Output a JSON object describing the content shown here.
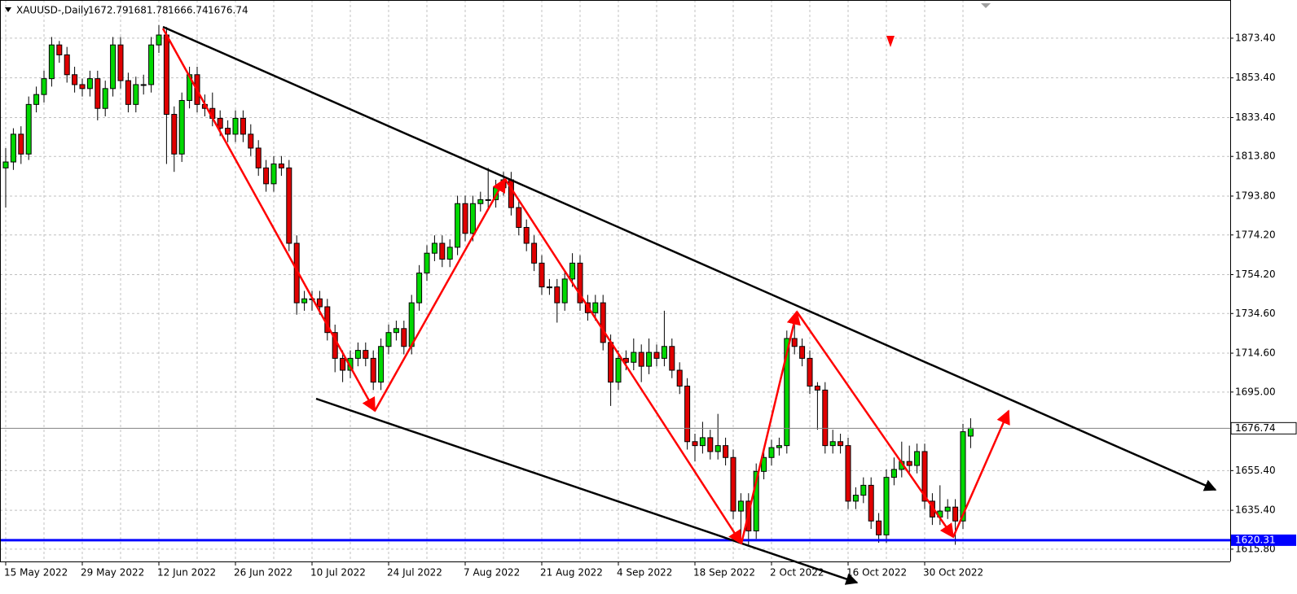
{
  "chart_data": {
    "type": "candlestick",
    "symbol_label": "XAUUSD-,Daily",
    "ohlc": [
      [
        1808,
        1818,
        1788,
        1811
      ],
      [
        1811,
        1828,
        1807,
        1825
      ],
      [
        1825,
        1829,
        1810,
        1815
      ],
      [
        1815,
        1844,
        1812,
        1840
      ],
      [
        1840,
        1849,
        1836,
        1845
      ],
      [
        1845,
        1857,
        1841,
        1853
      ],
      [
        1853,
        1874,
        1849,
        1870
      ],
      [
        1870,
        1872,
        1861,
        1865
      ],
      [
        1865,
        1869,
        1851,
        1855
      ],
      [
        1855,
        1859,
        1846,
        1850
      ],
      [
        1850,
        1853,
        1844,
        1848
      ],
      [
        1848,
        1857,
        1844,
        1853
      ],
      [
        1853,
        1857,
        1832,
        1838
      ],
      [
        1838,
        1852,
        1834,
        1848
      ],
      [
        1848,
        1874,
        1844,
        1870
      ],
      [
        1870,
        1874,
        1848,
        1852
      ],
      [
        1852,
        1856,
        1836,
        1840
      ],
      [
        1840,
        1854,
        1836,
        1850
      ],
      [
        1850,
        1855,
        1845,
        1850
      ],
      [
        1850,
        1874,
        1846,
        1870
      ],
      [
        1870,
        1880,
        1866,
        1875
      ],
      [
        1875,
        1879,
        1810,
        1835
      ],
      [
        1835,
        1839,
        1806,
        1815
      ],
      [
        1815,
        1846,
        1811,
        1842
      ],
      [
        1842,
        1859,
        1838,
        1855
      ],
      [
        1855,
        1859,
        1836,
        1840
      ],
      [
        1840,
        1845,
        1834,
        1838
      ],
      [
        1838,
        1846,
        1829,
        1833
      ],
      [
        1833,
        1837,
        1824,
        1828
      ],
      [
        1828,
        1832,
        1821,
        1825
      ],
      [
        1825,
        1837,
        1821,
        1833
      ],
      [
        1833,
        1837,
        1821,
        1825
      ],
      [
        1825,
        1830,
        1814,
        1818
      ],
      [
        1818,
        1822,
        1804,
        1808
      ],
      [
        1808,
        1812,
        1796,
        1800
      ],
      [
        1800,
        1814,
        1796,
        1810
      ],
      [
        1810,
        1814,
        1804,
        1808
      ],
      [
        1808,
        1812,
        1766,
        1770
      ],
      [
        1770,
        1774,
        1734,
        1740
      ],
      [
        1740,
        1746,
        1736,
        1742
      ],
      [
        1742,
        1746,
        1736,
        1742
      ],
      [
        1742,
        1746,
        1734,
        1738
      ],
      [
        1738,
        1742,
        1721,
        1725
      ],
      [
        1725,
        1729,
        1705,
        1712
      ],
      [
        1712,
        1716,
        1700,
        1706
      ],
      [
        1706,
        1716,
        1702,
        1712
      ],
      [
        1712,
        1720,
        1708,
        1716
      ],
      [
        1716,
        1720,
        1708,
        1712
      ],
      [
        1712,
        1716,
        1696,
        1700
      ],
      [
        1700,
        1722,
        1696,
        1718
      ],
      [
        1718,
        1729,
        1714,
        1725
      ],
      [
        1725,
        1731,
        1721,
        1727
      ],
      [
        1727,
        1731,
        1714,
        1718
      ],
      [
        1718,
        1744,
        1714,
        1740
      ],
      [
        1740,
        1759,
        1736,
        1755
      ],
      [
        1755,
        1769,
        1751,
        1765
      ],
      [
        1765,
        1774,
        1761,
        1770
      ],
      [
        1770,
        1774,
        1758,
        1762
      ],
      [
        1762,
        1772,
        1758,
        1768
      ],
      [
        1768,
        1794,
        1764,
        1790
      ],
      [
        1790,
        1794,
        1771,
        1775
      ],
      [
        1775,
        1794,
        1771,
        1790
      ],
      [
        1790,
        1796,
        1786,
        1792
      ],
      [
        1792,
        1808,
        1788,
        1792
      ],
      [
        1792,
        1802,
        1788,
        1798
      ],
      [
        1798,
        1806,
        1794,
        1802
      ],
      [
        1802,
        1806,
        1784,
        1788
      ],
      [
        1788,
        1792,
        1774,
        1778
      ],
      [
        1778,
        1782,
        1766,
        1770
      ],
      [
        1770,
        1774,
        1756,
        1760
      ],
      [
        1760,
        1764,
        1744,
        1748
      ],
      [
        1748,
        1752,
        1744,
        1748
      ],
      [
        1748,
        1752,
        1730,
        1740
      ],
      [
        1740,
        1756,
        1736,
        1752
      ],
      [
        1752,
        1765,
        1748,
        1760
      ],
      [
        1760,
        1764,
        1736,
        1740
      ],
      [
        1740,
        1744,
        1731,
        1735
      ],
      [
        1735,
        1744,
        1731,
        1740
      ],
      [
        1740,
        1744,
        1716,
        1720
      ],
      [
        1720,
        1724,
        1688,
        1700
      ],
      [
        1700,
        1716,
        1696,
        1712
      ],
      [
        1712,
        1716,
        1706,
        1710
      ],
      [
        1710,
        1722,
        1706,
        1715
      ],
      [
        1715,
        1719,
        1700,
        1708
      ],
      [
        1708,
        1722,
        1704,
        1715
      ],
      [
        1715,
        1719,
        1708,
        1712
      ],
      [
        1712,
        1736,
        1708,
        1718
      ],
      [
        1718,
        1722,
        1702,
        1706
      ],
      [
        1706,
        1710,
        1694,
        1698
      ],
      [
        1698,
        1702,
        1666,
        1670
      ],
      [
        1670,
        1674,
        1660,
        1668
      ],
      [
        1668,
        1680,
        1664,
        1672
      ],
      [
        1672,
        1676,
        1661,
        1665
      ],
      [
        1665,
        1684,
        1661,
        1668
      ],
      [
        1668,
        1672,
        1658,
        1662
      ],
      [
        1662,
        1666,
        1631,
        1635
      ],
      [
        1635,
        1644,
        1622,
        1640
      ],
      [
        1640,
        1644,
        1618,
        1625
      ],
      [
        1625,
        1659,
        1621,
        1655
      ],
      [
        1655,
        1666,
        1651,
        1662
      ],
      [
        1662,
        1671,
        1658,
        1667
      ],
      [
        1667,
        1672,
        1663,
        1668
      ],
      [
        1668,
        1726,
        1664,
        1722
      ],
      [
        1722,
        1730,
        1714,
        1718
      ],
      [
        1718,
        1722,
        1708,
        1712
      ],
      [
        1712,
        1716,
        1694,
        1698
      ],
      [
        1698,
        1700,
        1676,
        1696
      ],
      [
        1696,
        1700,
        1664,
        1668
      ],
      [
        1668,
        1676,
        1664,
        1670
      ],
      [
        1670,
        1674,
        1664,
        1668
      ],
      [
        1668,
        1672,
        1636,
        1640
      ],
      [
        1640,
        1647,
        1636,
        1643
      ],
      [
        1643,
        1652,
        1639,
        1648
      ],
      [
        1648,
        1652,
        1626,
        1630
      ],
      [
        1630,
        1634,
        1619,
        1623
      ],
      [
        1623,
        1656,
        1619,
        1652
      ],
      [
        1652,
        1662,
        1648,
        1656
      ],
      [
        1656,
        1670,
        1652,
        1660
      ],
      [
        1660,
        1668,
        1654,
        1658
      ],
      [
        1658,
        1669,
        1654,
        1665
      ],
      [
        1665,
        1669,
        1636,
        1640
      ],
      [
        1640,
        1644,
        1628,
        1632
      ],
      [
        1632,
        1648,
        1628,
        1635
      ],
      [
        1635,
        1641,
        1631,
        1637
      ],
      [
        1637,
        1641,
        1618,
        1630
      ],
      [
        1630,
        1679,
        1626,
        1675
      ],
      [
        1672.79,
        1681.78,
        1666.74,
        1676.74
      ]
    ],
    "categories": [
      "15 May 2022",
      null,
      null,
      null,
      null,
      null,
      null,
      null,
      null,
      null,
      "29 May 2022",
      null,
      null,
      null,
      null,
      null,
      null,
      null,
      null,
      null,
      "12 Jun 2022",
      null,
      null,
      null,
      null,
      null,
      null,
      null,
      null,
      null,
      "26 Jun 2022",
      null,
      null,
      null,
      null,
      null,
      null,
      null,
      null,
      null,
      "10 Jul 2022",
      null,
      null,
      null,
      null,
      null,
      null,
      null,
      null,
      null,
      "24 Jul 2022",
      null,
      null,
      null,
      null,
      null,
      null,
      null,
      null,
      null,
      "7 Aug 2022",
      null,
      null,
      null,
      null,
      null,
      null,
      null,
      null,
      null,
      "21 Aug 2022",
      null,
      null,
      null,
      null,
      null,
      null,
      null,
      null,
      null,
      "4 Sep 2022",
      null,
      null,
      null,
      null,
      null,
      null,
      null,
      null,
      null,
      "18 Sep 2022",
      null,
      null,
      null,
      null,
      null,
      null,
      null,
      null,
      null,
      "2 Oct 2022",
      null,
      null,
      null,
      null,
      null,
      null,
      null,
      null,
      null,
      "16 Oct 2022",
      null,
      null,
      null,
      null,
      null,
      null,
      null,
      null,
      null,
      "30 Oct 2022",
      null,
      null,
      null,
      null,
      null,
      null
    ],
    "ylim": [
      1609.6,
      1890.6
    ],
    "yticks": [
      {
        "value": 1873.4,
        "label": "1873.40"
      },
      {
        "value": 1853.4,
        "label": "1853.40"
      },
      {
        "value": 1833.4,
        "label": "1833.40"
      },
      {
        "value": 1813.8,
        "label": "1813.80"
      },
      {
        "value": 1793.8,
        "label": "1793.80"
      },
      {
        "value": 1774.2,
        "label": "1774.20"
      },
      {
        "value": 1754.2,
        "label": "1754.20"
      },
      {
        "value": 1734.6,
        "label": "1734.60"
      },
      {
        "value": 1714.6,
        "label": "1714.60"
      },
      {
        "value": 1695,
        "label": "1695.00"
      },
      {
        "value": 1655.4,
        "label": "1655.40"
      },
      {
        "value": 1635.4,
        "label": "1635.40"
      },
      {
        "value": 1615.8,
        "label": "1615.80"
      }
    ],
    "grid": true,
    "up_color": "#00d800",
    "down_color": "#e00000",
    "hline": {
      "value": 1620.31,
      "color": "#0000ff"
    }
  }
}
